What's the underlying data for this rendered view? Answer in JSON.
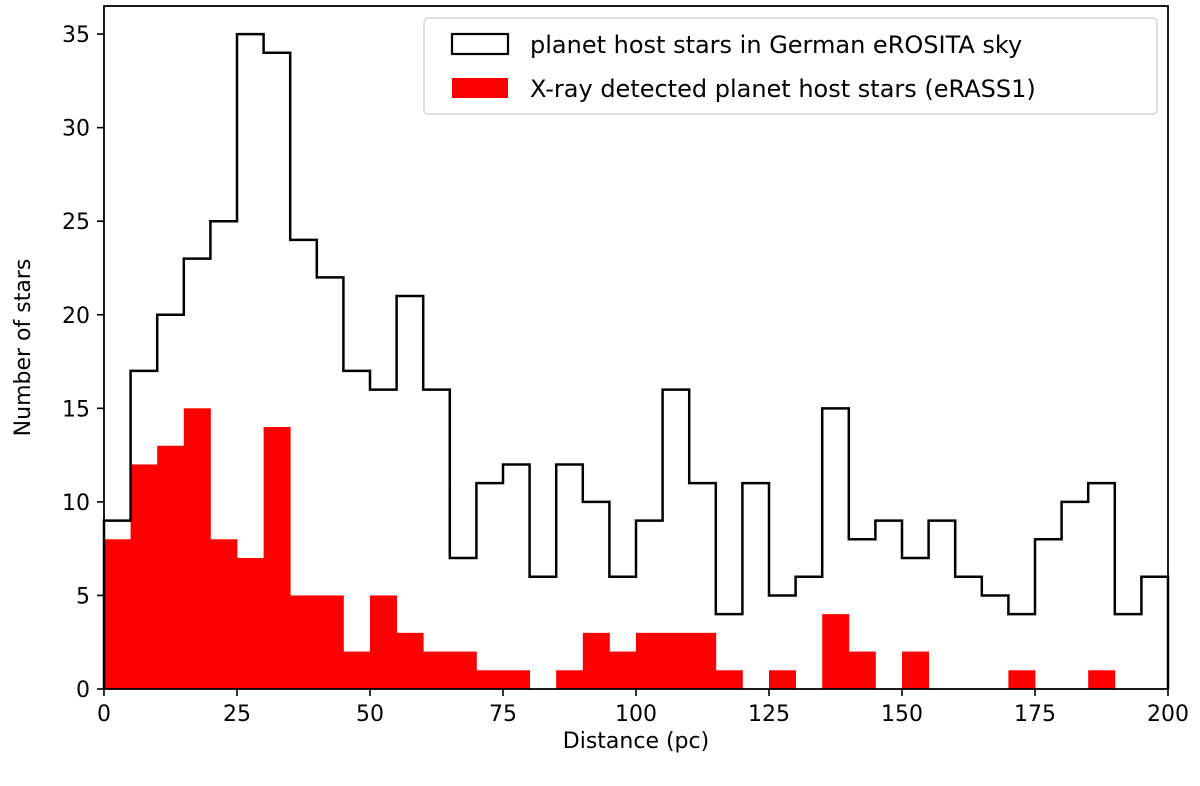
{
  "chart_data": {
    "type": "bar",
    "xlabel": "Distance (pc)",
    "ylabel": "Number of stars",
    "xlim": [
      0,
      200
    ],
    "ylim": [
      0,
      36.5
    ],
    "bin_width": 5,
    "bin_edges_start": [
      0,
      5,
      10,
      15,
      20,
      25,
      30,
      35,
      40,
      45,
      50,
      55,
      60,
      65,
      70,
      75,
      80,
      85,
      90,
      95,
      100,
      105,
      110,
      115,
      120,
      125,
      130,
      135,
      140,
      145,
      150,
      155,
      160,
      165,
      170,
      175,
      180,
      185,
      190,
      195
    ],
    "xticks": [
      0,
      25,
      50,
      75,
      100,
      125,
      150,
      175,
      200
    ],
    "yticks": [
      0,
      5,
      10,
      15,
      20,
      25,
      30,
      35
    ],
    "grid": false,
    "legend_position": "top-right",
    "series": [
      {
        "name": "planet host stars in German eROSITA sky",
        "style": "step-outline",
        "color": "#000000",
        "values": [
          9,
          17,
          20,
          23,
          25,
          35,
          34,
          24,
          22,
          17,
          16,
          21,
          16,
          7,
          11,
          12,
          6,
          12,
          10,
          6,
          9,
          16,
          11,
          4,
          11,
          5,
          6,
          15,
          8,
          9,
          7,
          9,
          6,
          5,
          4,
          8,
          10,
          11,
          4,
          6
        ]
      },
      {
        "name": "X-ray detected planet host stars (eRASS1)",
        "style": "filled-bars",
        "color": "#ff0000",
        "values": [
          8,
          12,
          13,
          15,
          8,
          7,
          14,
          5,
          5,
          2,
          5,
          3,
          2,
          2,
          1,
          1,
          0,
          1,
          3,
          2,
          3,
          3,
          3,
          1,
          0,
          1,
          0,
          4,
          2,
          0,
          2,
          0,
          0,
          0,
          1,
          0,
          0,
          1,
          0,
          0
        ]
      }
    ]
  }
}
